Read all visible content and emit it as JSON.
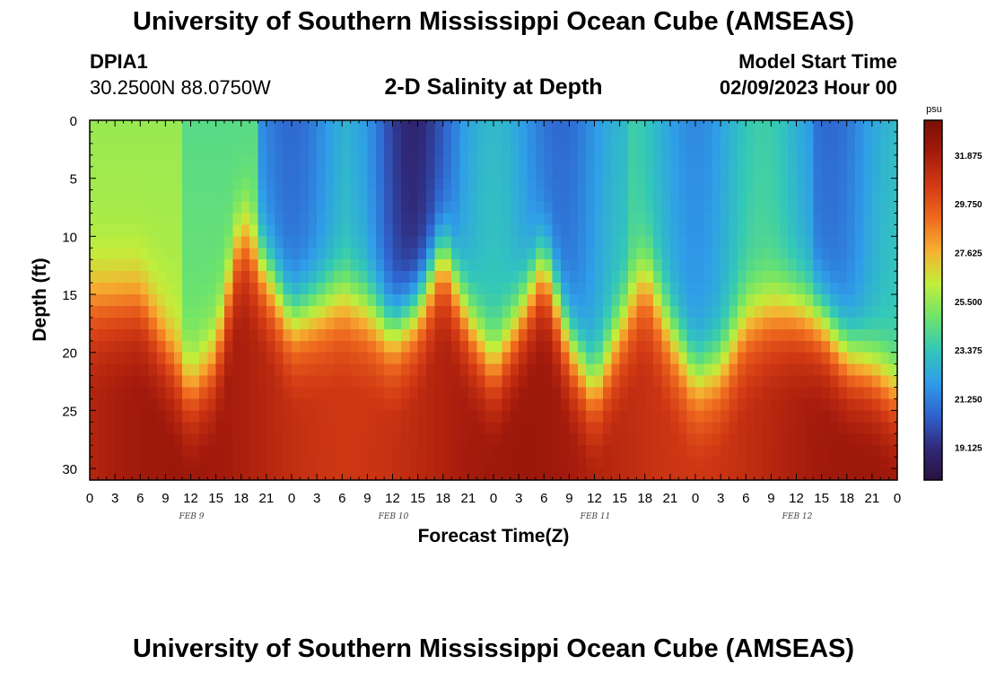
{
  "header": {
    "title": "University of Southern Mississippi Ocean Cube (AMSEAS)",
    "station": "DPIA1",
    "coords": "30.2500N  88.0750W",
    "plot_title": "2-D Salinity at Depth",
    "start_label": "Model Start Time",
    "start_value": "02/09/2023 Hour 00"
  },
  "footer": {
    "title": "University of Southern Mississippi Ocean Cube (AMSEAS)"
  },
  "colors": {
    "stops": [
      "#2a1040",
      "#302a7a",
      "#2f64cf",
      "#2f9ee8",
      "#33c8b8",
      "#6fe46a",
      "#c2ee3a",
      "#f6b131",
      "#ef6a1f",
      "#d23a14",
      "#a51b0c",
      "#7a0f06"
    ]
  },
  "chart_data": {
    "type": "heatmap",
    "title": "2-D Salinity at Depth",
    "xlabel": "Forecast Time(Z)",
    "ylabel": "Depth (ft)",
    "xlim": [
      0,
      96
    ],
    "ylim": [
      0,
      31
    ],
    "x_tick_labels": [
      "0",
      "3",
      "6",
      "9",
      "12",
      "15",
      "18",
      "21",
      "0",
      "3",
      "6",
      "9",
      "12",
      "15",
      "18",
      "21",
      "0",
      "3",
      "6",
      "9",
      "12",
      "15",
      "18",
      "21",
      "0",
      "3",
      "6",
      "9",
      "12",
      "15",
      "18",
      "21",
      "0"
    ],
    "y_ticks": [
      0,
      5,
      10,
      15,
      20,
      25,
      30
    ],
    "date_labels": [
      {
        "label": "FEB 9",
        "hour": 12
      },
      {
        "label": "FEB 10",
        "hour": 36
      },
      {
        "label": "FEB 11",
        "hour": 60
      },
      {
        "label": "FEB 12",
        "hour": 84
      }
    ],
    "colorbar": {
      "unit": "psu",
      "range": [
        17.7,
        33.4
      ],
      "labels": [
        "31.875",
        "29.750",
        "27.625",
        "25.500",
        "23.375",
        "21.250",
        "19.125"
      ]
    },
    "interface_depth_ft": [
      [
        0,
        15
      ],
      [
        3,
        15
      ],
      [
        6,
        15
      ],
      [
        9,
        19
      ],
      [
        12,
        23
      ],
      [
        15,
        20
      ],
      [
        18,
        9
      ],
      [
        21,
        13
      ],
      [
        24,
        17
      ],
      [
        27,
        16
      ],
      [
        30,
        15
      ],
      [
        33,
        16
      ],
      [
        36,
        18
      ],
      [
        39,
        16
      ],
      [
        42,
        11
      ],
      [
        45,
        17
      ],
      [
        48,
        21
      ],
      [
        51,
        17
      ],
      [
        54,
        12
      ],
      [
        57,
        19
      ],
      [
        60,
        23
      ],
      [
        63,
        18
      ],
      [
        66,
        13
      ],
      [
        69,
        18
      ],
      [
        72,
        22
      ],
      [
        75,
        21
      ],
      [
        78,
        17
      ],
      [
        81,
        16
      ],
      [
        84,
        16
      ],
      [
        87,
        17
      ],
      [
        90,
        20
      ],
      [
        93,
        21
      ],
      [
        96,
        23
      ]
    ]
  }
}
